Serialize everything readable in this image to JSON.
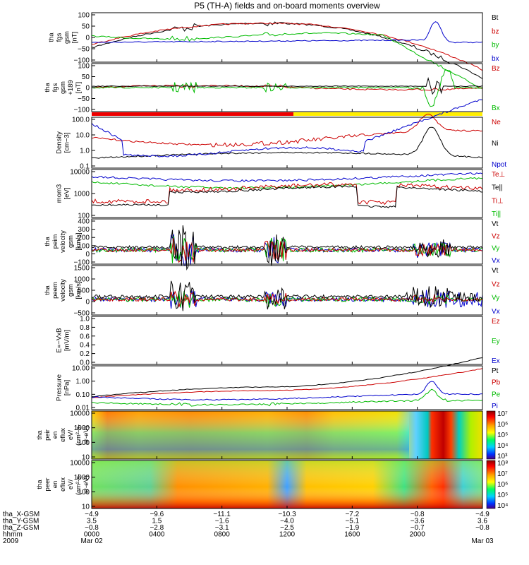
{
  "chart_data": {
    "type": "line",
    "title": "P5 (TH-A) fields and on-board moments overview",
    "panels": [
      {
        "id": "fgs",
        "ylabel": [
          "tha",
          "fgs",
          "gsm",
          "[nT]"
        ],
        "yticks": [
          "100",
          "50",
          "0",
          "−50",
          "−100"
        ],
        "legend": [
          {
            "name": "Bt",
            "color": "#000000"
          },
          {
            "name": "bz",
            "color": "#cc0000"
          },
          {
            "name": "by",
            "color": "#00bb00"
          },
          {
            "name": "bx",
            "color": "#0000cc"
          }
        ]
      },
      {
        "id": "fgs189",
        "ylabel": [
          "tha",
          "fgs",
          "gsm",
          "+189",
          "[nT]"
        ],
        "yticks": [
          "100",
          "50",
          "0",
          "−50",
          "−100"
        ],
        "legend": [
          {
            "name": "Bz",
            "color": "#cc0000"
          },
          {
            "name": "Bx",
            "color": "#00bb00"
          }
        ]
      },
      {
        "id": "density",
        "ylabel": [
          "Density",
          "[cm−3]"
        ],
        "yticks": [
          "100.0",
          "10.0",
          "1.0",
          "0.1"
        ],
        "legend": [
          {
            "name": "Ne",
            "color": "#cc0000"
          },
          {
            "name": "Ni",
            "color": "#000000"
          },
          {
            "name": "Npot",
            "color": "#0000cc"
          }
        ]
      },
      {
        "id": "temp",
        "ylabel": [
          "mom3",
          "[eV]"
        ],
        "yticks": [
          "10000",
          "1000",
          "100"
        ],
        "legend": [
          {
            "name": "Te⊥",
            "color": "#cc0000"
          },
          {
            "name": "Te||",
            "color": "#000000"
          },
          {
            "name": "Ti⊥",
            "color": "#cc0000"
          },
          {
            "name": "Ti||",
            "color": "#00bb00"
          }
        ]
      },
      {
        "id": "peim",
        "ylabel": [
          "tha",
          "peim",
          "velocity",
          "gsm",
          "[km/s]"
        ],
        "yticks": [
          "400",
          "300",
          "200",
          "100",
          "0",
          "−100"
        ],
        "legend": [
          {
            "name": "Vt",
            "color": "#000000"
          },
          {
            "name": "Vz",
            "color": "#cc0000"
          },
          {
            "name": "Vy",
            "color": "#00bb00"
          },
          {
            "name": "Vx",
            "color": "#0000cc"
          }
        ]
      },
      {
        "id": "peem",
        "ylabel": [
          "tha",
          "peem",
          "velocity",
          "gsm",
          "[km/s]"
        ],
        "yticks": [
          "1500",
          "1000",
          "500",
          "0",
          "−500"
        ],
        "legend": [
          {
            "name": "Vt",
            "color": "#000000"
          },
          {
            "name": "Vz",
            "color": "#cc0000"
          },
          {
            "name": "Vy",
            "color": "#00bb00"
          },
          {
            "name": "Vx",
            "color": "#0000cc"
          }
        ]
      },
      {
        "id": "efield",
        "ylabel": [
          "E=−VxB",
          "[mV/m]"
        ],
        "yticks": [
          "1.0",
          "0.8",
          "0.6",
          "0.4",
          "0.2",
          "0.0"
        ],
        "legend": [
          {
            "name": "Ez",
            "color": "#cc0000"
          },
          {
            "name": "Ey",
            "color": "#00bb00"
          },
          {
            "name": "Ex",
            "color": "#0000cc"
          }
        ]
      },
      {
        "id": "pressure",
        "ylabel": [
          "Pressure",
          "[nPa]"
        ],
        "yticks": [
          "10.00",
          "1.00",
          "0.10",
          "0.01"
        ],
        "legend": [
          {
            "name": "Pt",
            "color": "#000000"
          },
          {
            "name": "Pb",
            "color": "#cc0000"
          },
          {
            "name": "Pe",
            "color": "#00bb00"
          },
          {
            "name": "Pi",
            "color": "#0000cc"
          }
        ]
      },
      {
        "id": "peir",
        "ylabel": [
          "tha",
          "peir",
          "en",
          "eflux",
          "eV/",
          "(cm²-s-",
          "sr-eV)"
        ],
        "yticks": [
          "10000",
          "1000",
          "100",
          "10"
        ],
        "colorbar": [
          "10⁷",
          "10⁶",
          "10⁵",
          "10⁴",
          "10³"
        ]
      },
      {
        "id": "peer",
        "ylabel": [
          "tha",
          "peer",
          "en",
          "eflux",
          "eV/",
          "(cm²-s-",
          "sr-eV)"
        ],
        "yticks": [
          "10000",
          "1000",
          "100",
          "10"
        ],
        "colorbar": [
          "10⁸",
          "10⁷",
          "10⁶",
          "10⁵",
          "10⁴"
        ]
      }
    ],
    "x_axis": {
      "rows": [
        {
          "label": "tha_X-GSM",
          "values": [
            "−4.9",
            "−9.6",
            "−11.1",
            "−10.3",
            "−7.2",
            "−0.8",
            "−4.9"
          ]
        },
        {
          "label": "tha_Y-GSM",
          "values": [
            "3.5",
            "1.5",
            "−1.6",
            "−4.0",
            "−5.1",
            "−3.6",
            "3.6"
          ]
        },
        {
          "label": "tha_Z-GSM",
          "values": [
            "−0.8",
            "−2.8",
            "−3.1",
            "−2.5",
            "−1.9",
            "−0.7",
            "−0.8"
          ]
        },
        {
          "label": "hhmm",
          "values": [
            "0000",
            "0400",
            "0800",
            "1200",
            "1600",
            "2000",
            ""
          ]
        },
        {
          "label": "2009",
          "values": [
            "Mar 02",
            "",
            "",
            "",
            "",
            "",
            "Mar 03"
          ]
        }
      ],
      "tick_hours": [
        0,
        4,
        8,
        12,
        16,
        20,
        24
      ]
    }
  }
}
